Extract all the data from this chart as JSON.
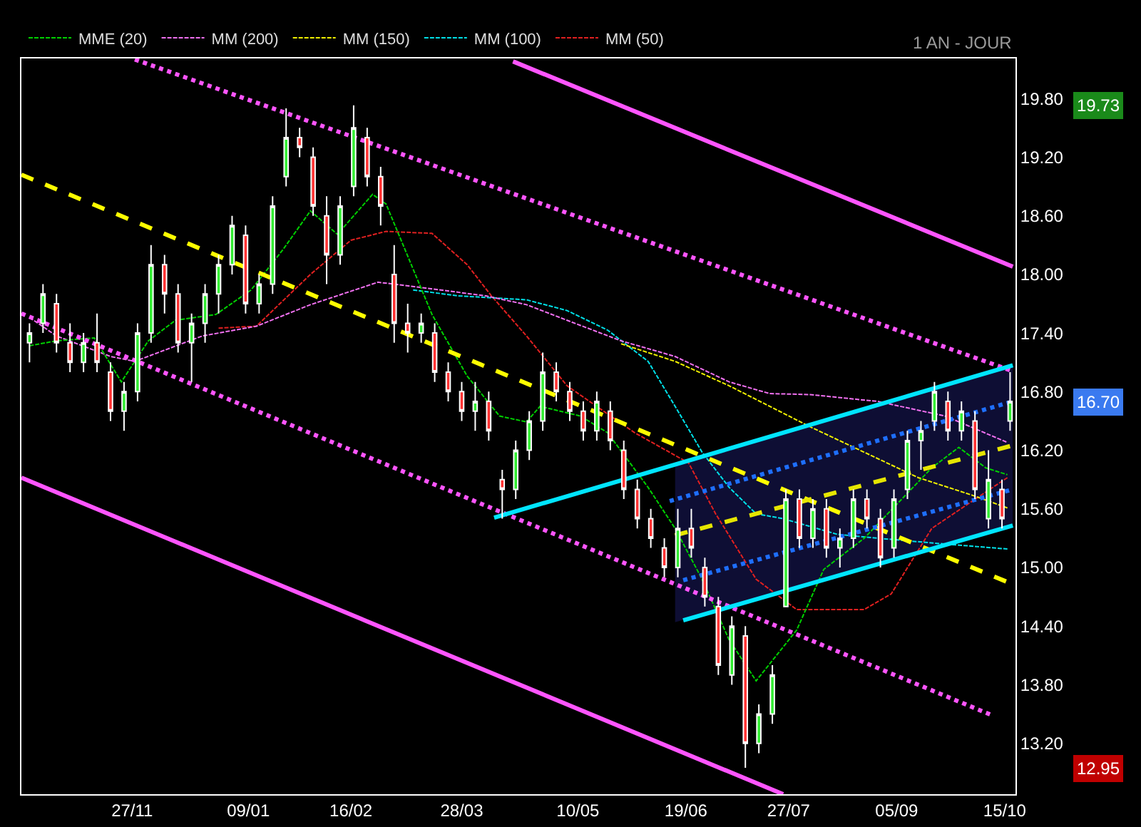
{
  "chart_data": {
    "type": "candlestick",
    "annotations": [
      "1 AN - JOUR",
      "19.73",
      "16.70",
      "12.95"
    ],
    "x": [
      "2011-10-20",
      "2011-10-25",
      "2011-10-30",
      "2011-11-04",
      "2011-11-09",
      "2011-11-14",
      "2011-11-19",
      "2011-11-24",
      "2011-11-29",
      "2011-12-04",
      "2011-12-09",
      "2011-12-14",
      "2011-12-19",
      "2011-12-24",
      "2011-12-29",
      "2012-01-03",
      "2012-01-08",
      "2012-01-13",
      "2012-01-18",
      "2012-01-23",
      "2012-01-28",
      "2012-02-02",
      "2012-02-07",
      "2012-02-12",
      "2012-02-17",
      "2012-02-22",
      "2012-02-27",
      "2012-03-03",
      "2012-03-08",
      "2012-03-13",
      "2012-03-18",
      "2012-03-23",
      "2012-03-28",
      "2012-04-02",
      "2012-04-07",
      "2012-04-12",
      "2012-04-17",
      "2012-04-22",
      "2012-04-27",
      "2012-05-02",
      "2012-05-07",
      "2012-05-12",
      "2012-05-17",
      "2012-05-22",
      "2012-05-27",
      "2012-06-01",
      "2012-06-06",
      "2012-06-11",
      "2012-06-16",
      "2012-06-21",
      "2012-06-26",
      "2012-07-01",
      "2012-07-06",
      "2012-07-11",
      "2012-07-16",
      "2012-07-21",
      "2012-07-26",
      "2012-07-31",
      "2012-08-05",
      "2012-08-10",
      "2012-08-15",
      "2012-08-20",
      "2012-08-25",
      "2012-08-30",
      "2012-09-04",
      "2012-09-09",
      "2012-09-14",
      "2012-09-19",
      "2012-09-24",
      "2012-09-29",
      "2012-10-04",
      "2012-10-09",
      "2012-10-14",
      "2012-10-17"
    ],
    "ohlc": [
      [
        17.3,
        17.5,
        17.1,
        17.4
      ],
      [
        17.5,
        17.9,
        17.4,
        17.8
      ],
      [
        17.7,
        17.8,
        17.2,
        17.3
      ],
      [
        17.3,
        17.5,
        17.0,
        17.1
      ],
      [
        17.1,
        17.4,
        17.0,
        17.3
      ],
      [
        17.3,
        17.6,
        17.0,
        17.1
      ],
      [
        17.0,
        17.1,
        16.5,
        16.6
      ],
      [
        16.6,
        16.9,
        16.4,
        16.8
      ],
      [
        16.8,
        17.5,
        16.7,
        17.4
      ],
      [
        17.4,
        18.3,
        17.3,
        18.1
      ],
      [
        18.1,
        18.2,
        17.6,
        17.8
      ],
      [
        17.8,
        17.9,
        17.2,
        17.3
      ],
      [
        17.3,
        17.6,
        16.9,
        17.5
      ],
      [
        17.5,
        17.9,
        17.3,
        17.8
      ],
      [
        17.8,
        18.2,
        17.6,
        18.1
      ],
      [
        18.1,
        18.6,
        18.0,
        18.5
      ],
      [
        18.4,
        18.5,
        17.6,
        17.7
      ],
      [
        17.7,
        18.0,
        17.6,
        17.9
      ],
      [
        17.9,
        18.8,
        17.8,
        18.7
      ],
      [
        19.0,
        19.7,
        18.9,
        19.4
      ],
      [
        19.4,
        19.5,
        19.2,
        19.3
      ],
      [
        19.2,
        19.3,
        18.6,
        18.7
      ],
      [
        18.6,
        18.8,
        17.9,
        18.2
      ],
      [
        18.2,
        18.8,
        18.1,
        18.7
      ],
      [
        18.9,
        19.73,
        18.8,
        19.5
      ],
      [
        19.4,
        19.5,
        18.9,
        19.0
      ],
      [
        19.0,
        19.1,
        18.5,
        18.7
      ],
      [
        18.0,
        18.3,
        17.3,
        17.5
      ],
      [
        17.5,
        17.7,
        17.2,
        17.4
      ],
      [
        17.4,
        17.6,
        17.3,
        17.5
      ],
      [
        17.4,
        17.5,
        16.9,
        17.0
      ],
      [
        17.0,
        17.1,
        16.7,
        16.8
      ],
      [
        16.8,
        16.9,
        16.5,
        16.6
      ],
      [
        16.6,
        16.9,
        16.4,
        16.7
      ],
      [
        16.7,
        16.8,
        16.3,
        16.4
      ],
      [
        15.9,
        16.0,
        15.5,
        15.8
      ],
      [
        15.8,
        16.3,
        15.7,
        16.2
      ],
      [
        16.2,
        16.6,
        16.1,
        16.5
      ],
      [
        16.5,
        17.2,
        16.4,
        17.0
      ],
      [
        17.0,
        17.1,
        16.7,
        16.8
      ],
      [
        16.8,
        16.9,
        16.5,
        16.6
      ],
      [
        16.6,
        16.7,
        16.3,
        16.4
      ],
      [
        16.4,
        16.8,
        16.3,
        16.7
      ],
      [
        16.6,
        16.7,
        16.2,
        16.3
      ],
      [
        16.2,
        16.3,
        15.7,
        15.8
      ],
      [
        15.8,
        15.9,
        15.4,
        15.5
      ],
      [
        15.5,
        15.6,
        15.2,
        15.3
      ],
      [
        15.2,
        15.3,
        14.9,
        15.0
      ],
      [
        15.0,
        15.6,
        14.9,
        15.4
      ],
      [
        15.4,
        15.6,
        15.1,
        15.2
      ],
      [
        15.0,
        15.1,
        14.6,
        14.7
      ],
      [
        14.6,
        14.7,
        13.9,
        14.0
      ],
      [
        13.9,
        14.5,
        13.8,
        14.4
      ],
      [
        14.3,
        14.4,
        12.95,
        13.2
      ],
      [
        13.2,
        13.6,
        13.1,
        13.5
      ],
      [
        13.5,
        14.0,
        13.4,
        13.9
      ],
      [
        14.6,
        15.8,
        14.6,
        15.7
      ],
      [
        15.7,
        15.8,
        15.2,
        15.3
      ],
      [
        15.3,
        15.7,
        15.2,
        15.6
      ],
      [
        15.6,
        15.7,
        15.1,
        15.2
      ],
      [
        15.2,
        15.4,
        15.0,
        15.3
      ],
      [
        15.3,
        15.8,
        15.2,
        15.7
      ],
      [
        15.7,
        15.8,
        15.4,
        15.5
      ],
      [
        15.5,
        15.6,
        15.0,
        15.1
      ],
      [
        15.2,
        15.8,
        15.1,
        15.7
      ],
      [
        15.8,
        16.4,
        15.7,
        16.3
      ],
      [
        16.3,
        16.5,
        16.0,
        16.4
      ],
      [
        16.5,
        16.9,
        16.4,
        16.8
      ],
      [
        16.7,
        16.8,
        16.3,
        16.4
      ],
      [
        16.4,
        16.7,
        16.3,
        16.6
      ],
      [
        16.5,
        16.6,
        15.7,
        15.8
      ],
      [
        15.5,
        16.2,
        15.4,
        15.9
      ],
      [
        15.8,
        15.9,
        15.4,
        15.5
      ],
      [
        16.5,
        17.0,
        16.4,
        16.7
      ]
    ],
    "series": [
      {
        "name": "MM (50)",
        "type": "line",
        "color": "#e02020",
        "line_style": "dashed",
        "x": [
          "2011-12-29",
          "2012-01-12",
          "2012-02-01",
          "2012-02-16",
          "2012-02-29",
          "2012-03-17",
          "2012-03-30",
          "2012-04-08",
          "2012-04-21",
          "2012-05-06",
          "2012-05-31",
          "2012-06-20",
          "2012-06-30",
          "2012-07-15",
          "2012-07-30",
          "2012-08-24",
          "2012-09-03",
          "2012-09-18",
          "2012-10-03",
          "2012-10-16"
        ],
        "values": [
          17.45,
          17.47,
          18.0,
          18.35,
          18.44,
          18.42,
          18.1,
          17.78,
          17.37,
          16.86,
          16.38,
          16.07,
          15.55,
          14.88,
          14.57,
          14.57,
          14.73,
          15.4,
          15.68,
          15.92
        ]
      },
      {
        "name": "MM (100)",
        "type": "line",
        "color": "#00e0e8",
        "line_style": "dashed",
        "x": [
          "2012-03-10",
          "2012-03-27",
          "2012-04-21",
          "2012-05-06",
          "2012-05-21",
          "2012-06-05",
          "2012-06-15",
          "2012-06-25",
          "2012-07-05",
          "2012-07-15",
          "2012-07-25",
          "2012-08-14",
          "2012-08-29",
          "2012-09-23",
          "2012-10-16"
        ],
        "values": [
          17.84,
          17.78,
          17.74,
          17.63,
          17.43,
          17.11,
          16.65,
          16.18,
          15.82,
          15.55,
          15.5,
          15.34,
          15.3,
          15.24,
          15.19
        ]
      },
      {
        "name": "MM (150)",
        "type": "line",
        "color": "#f0f000",
        "line_style": "dashed",
        "x": [
          "2012-05-26",
          "2012-06-15",
          "2012-07-05",
          "2012-07-20",
          "2012-08-04",
          "2012-08-24",
          "2012-09-13",
          "2012-10-03",
          "2012-10-16"
        ],
        "values": [
          17.29,
          17.11,
          16.86,
          16.65,
          16.44,
          16.18,
          15.92,
          15.74,
          15.61
        ]
      },
      {
        "name": "MM (200)",
        "type": "line",
        "color": "#f070f0",
        "line_style": "dashed",
        "x": [
          "2011-10-20",
          "2011-10-30",
          "2011-11-19",
          "2011-11-28",
          "2011-12-23",
          "2012-01-12",
          "2012-02-01",
          "2012-02-26",
          "2012-03-12",
          "2012-04-06",
          "2012-04-21",
          "2012-05-06",
          "2012-05-26",
          "2012-06-15",
          "2012-07-05",
          "2012-07-20",
          "2012-08-04",
          "2012-08-29",
          "2012-09-23",
          "2012-10-16"
        ],
        "values": [
          17.56,
          17.37,
          17.16,
          17.11,
          17.37,
          17.47,
          17.69,
          17.92,
          17.87,
          17.78,
          17.69,
          17.53,
          17.32,
          17.16,
          16.9,
          16.78,
          16.77,
          16.7,
          16.55,
          16.28
        ]
      },
      {
        "name": "MME (20)",
        "type": "line",
        "color": "#00d000",
        "line_style": "dashed",
        "x": [
          "2011-10-20",
          "2011-10-30",
          "2011-11-13",
          "2011-11-23",
          "2011-12-03",
          "2011-12-13",
          "2011-12-28",
          "2012-01-10",
          "2012-01-22",
          "2012-02-01",
          "2012-02-11",
          "2012-02-24",
          "2012-02-29",
          "2012-03-17",
          "2012-03-30",
          "2012-04-11",
          "2012-04-21",
          "2012-04-26",
          "2012-05-11",
          "2012-05-21",
          "2012-06-05",
          "2012-06-15",
          "2012-06-25",
          "2012-07-05",
          "2012-07-15",
          "2012-07-30",
          "2012-08-09",
          "2012-08-24",
          "2012-09-03",
          "2012-09-18",
          "2012-09-28",
          "2012-10-08",
          "2012-10-16"
        ],
        "values": [
          17.27,
          17.32,
          17.35,
          16.9,
          17.32,
          17.53,
          17.59,
          17.84,
          18.26,
          18.65,
          18.41,
          18.82,
          18.72,
          17.59,
          16.96,
          16.55,
          16.49,
          16.65,
          16.55,
          16.38,
          15.82,
          15.4,
          14.88,
          14.26,
          13.84,
          14.36,
          14.98,
          15.3,
          null,
          16.02,
          16.23,
          16.02,
          15.95
        ]
      },
      {
        "type": "line",
        "color": "#ff55ff",
        "line_style": "solid",
        "x": [
          "2012-04-16",
          "2012-10-18"
        ],
        "values": [
          20.18,
          18.08
        ]
      },
      {
        "type": "line",
        "color": "#ff55ff",
        "line_style": "solid",
        "x": [
          "2011-10-17",
          "2012-07-25"
        ],
        "values": [
          15.92,
          12.68
        ]
      },
      {
        "type": "line",
        "color": "#ff55ff",
        "line_style": "dotted",
        "x": [
          "2011-11-28",
          "2012-10-18"
        ],
        "values": [
          20.2,
          17.01
        ]
      },
      {
        "type": "line",
        "color": "#ff55ff",
        "line_style": "dotted",
        "x": [
          "2011-10-17",
          "2012-10-11"
        ],
        "values": [
          17.6,
          13.48
        ]
      },
      {
        "type": "line",
        "color": "#ffff00",
        "line_style": "dashed",
        "x": [
          "2011-10-17",
          "2012-10-17"
        ],
        "values": [
          19.02,
          14.84
        ]
      },
      {
        "type": "line",
        "color": "#00e5ff",
        "line_style": "solid",
        "x": [
          "2012-04-09",
          "2012-10-18"
        ],
        "values": [
          15.51,
          17.07
        ]
      },
      {
        "type": "line",
        "color": "#00e5ff",
        "line_style": "solid",
        "x": [
          "2012-06-18",
          "2012-10-18"
        ],
        "values": [
          14.46,
          15.43
        ]
      },
      {
        "type": "line",
        "color": "#1e6fff",
        "line_style": "dotted",
        "x": [
          "2012-06-13",
          "2012-10-18"
        ],
        "values": [
          15.68,
          16.7
        ]
      },
      {
        "type": "line",
        "color": "#1e6fff",
        "line_style": "dotted",
        "x": [
          "2012-06-18",
          "2012-10-18"
        ],
        "values": [
          14.87,
          15.8
        ]
      },
      {
        "type": "line",
        "color": "#e6e600",
        "line_style": "dashed",
        "x": [
          "2012-06-15",
          "2012-10-18"
        ],
        "values": [
          15.33,
          16.25
        ],
        "lower": [
          14.44,
          15.43
        ],
        "upper": [
          16.06,
          17.07
        ]
      }
    ],
    "xlim": [
      "2011-10-17",
      "2012-10-19"
    ],
    "xticks": [
      {
        "value": "2011-11-27",
        "label": "27/11"
      },
      {
        "value": "2012-01-09",
        "label": "09/01"
      },
      {
        "value": "2012-02-16",
        "label": "16/02"
      },
      {
        "value": "2012-03-28",
        "label": "28/03"
      },
      {
        "value": "2012-05-10",
        "label": "10/05"
      },
      {
        "value": "2012-06-19",
        "label": "19/06"
      },
      {
        "value": "2012-07-27",
        "label": "27/07"
      },
      {
        "value": "2012-09-05",
        "label": "05/09"
      },
      {
        "value": "2012-10-15",
        "label": "15/10"
      }
    ],
    "ylim": [
      12.68,
      20.21
    ],
    "yticks": [
      {
        "value": 13.2,
        "label": "13.20"
      },
      {
        "value": 13.8,
        "label": "13.80"
      },
      {
        "value": 14.4,
        "label": "14.40"
      },
      {
        "value": 15,
        "label": "15.00"
      },
      {
        "value": 15.6,
        "label": "15.60"
      },
      {
        "value": 16.2,
        "label": "16.20"
      },
      {
        "value": 16.8,
        "label": "16.80"
      },
      {
        "value": 17.4,
        "label": "17.40"
      },
      {
        "value": 18,
        "label": "18.00"
      },
      {
        "value": 18.6,
        "label": "18.60"
      },
      {
        "value": 19.2,
        "label": "19.20"
      },
      {
        "value": 19.8,
        "label": "19.80"
      }
    ],
    "grid": false,
    "legend": "top left",
    "marker": "none"
  }
}
